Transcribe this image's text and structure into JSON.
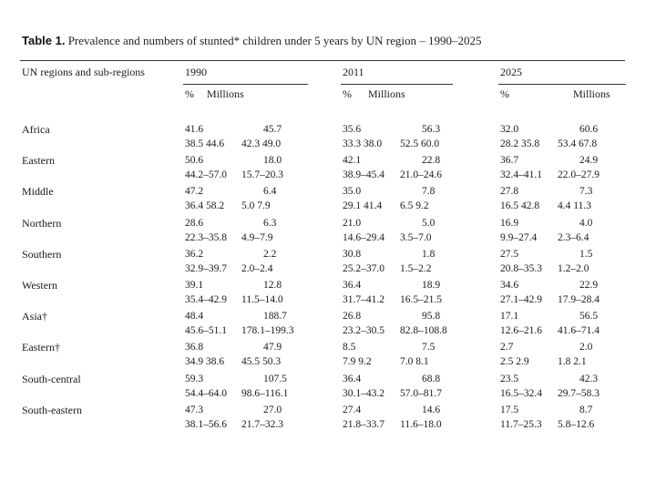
{
  "title": {
    "label": "Table 1.",
    "text": "Prevalence and numbers of stunted* children under 5 years by UN region – 1990–2025"
  },
  "header": {
    "region_col": "UN regions and sub-regions",
    "years": [
      "1990",
      "2011",
      "2025"
    ],
    "pct": "%",
    "millions": "Millions"
  },
  "rows": [
    {
      "name": "Africa",
      "v": [
        [
          "41.6",
          "45.7"
        ],
        [
          "35.6",
          "56.3"
        ],
        [
          "32.0",
          "60.6"
        ]
      ],
      "ci": [
        [
          "38.5 44.6",
          "42.3 49.0"
        ],
        [
          "33.3 38.0",
          "52.5 60.0"
        ],
        [
          "28.2 35.8",
          "53.4 67.8"
        ]
      ]
    },
    {
      "name": "Eastern",
      "v": [
        [
          "50.6",
          "18.0"
        ],
        [
          "42.1",
          "22.8"
        ],
        [
          "36.7",
          "24.9"
        ]
      ],
      "ci": [
        [
          "44.2–57.0",
          "15.7–20.3"
        ],
        [
          "38.9–45.4",
          "21.0–24.6"
        ],
        [
          "32.4–41.1",
          "22.0–27.9"
        ]
      ]
    },
    {
      "name": "Middle",
      "v": [
        [
          "47.2",
          "6.4"
        ],
        [
          "35.0",
          "7.8"
        ],
        [
          "27.8",
          "7.3"
        ]
      ],
      "ci": [
        [
          "36.4 58.2",
          "5.0 7.9"
        ],
        [
          "29.1 41.4",
          "6.5 9.2"
        ],
        [
          "16.5 42.8",
          "4.4 11.3"
        ]
      ]
    },
    {
      "name": "Northern",
      "v": [
        [
          "28.6",
          "6.3"
        ],
        [
          "21.0",
          "5.0"
        ],
        [
          "16.9",
          "4.0"
        ]
      ],
      "ci": [
        [
          "22.3–35.8",
          "4.9–7.9"
        ],
        [
          "14.6–29.4",
          "3.5–7.0"
        ],
        [
          "9.9–27.4",
          "2.3–6.4"
        ]
      ]
    },
    {
      "name": "Southern",
      "v": [
        [
          "36.2",
          "2.2"
        ],
        [
          "30.8",
          "1.8"
        ],
        [
          "27.5",
          "1.5"
        ]
      ],
      "ci": [
        [
          "32.9–39.7",
          "2.0–2.4"
        ],
        [
          "25.2–37.0",
          "1.5–2.2"
        ],
        [
          "20.8–35.3",
          "1.2–2.0"
        ]
      ]
    },
    {
      "name": "Western",
      "v": [
        [
          "39.1",
          "12.8"
        ],
        [
          "36.4",
          "18.9"
        ],
        [
          "34.6",
          "22.9"
        ]
      ],
      "ci": [
        [
          "35.4–42.9",
          "11.5–14.0"
        ],
        [
          "31.7–41.2",
          "16.5–21.5"
        ],
        [
          "27.1–42.9",
          "17.9–28.4"
        ]
      ]
    },
    {
      "name": "Asia†",
      "v": [
        [
          "48.4",
          "188.7"
        ],
        [
          "26.8",
          "95.8"
        ],
        [
          "17.1",
          "56.5"
        ]
      ],
      "ci": [
        [
          "45.6–51.1",
          "178.1–199.3"
        ],
        [
          "23.2–30.5",
          "82.8–108.8"
        ],
        [
          "12.6–21.6",
          "41.6–71.4"
        ]
      ]
    },
    {
      "name": "Eastern†",
      "v": [
        [
          "36.8",
          "47.9"
        ],
        [
          "8.5",
          "7.5"
        ],
        [
          "2.7",
          "2.0"
        ]
      ],
      "ci": [
        [
          "34.9 38.6",
          "45.5 50.3"
        ],
        [
          "7.9 9.2",
          "7.0 8.1"
        ],
        [
          "2.5 2.9",
          "1.8 2.1"
        ]
      ]
    },
    {
      "name": "South-central",
      "v": [
        [
          "59.3",
          "107.5"
        ],
        [
          "36.4",
          "68.8"
        ],
        [
          "23.5",
          "42.3"
        ]
      ],
      "ci": [
        [
          "54.4–64.0",
          "98.6–116.1"
        ],
        [
          "30.1–43.2",
          "57.0–81.7"
        ],
        [
          "16.5–32.4",
          "29.7–58.3"
        ]
      ]
    },
    {
      "name": "South-eastern",
      "v": [
        [
          "47.3",
          "27.0"
        ],
        [
          "27.4",
          "14.6"
        ],
        [
          "17.5",
          "8.7"
        ]
      ],
      "ci": [
        [
          "38.1–56.6",
          "21.7–32.3"
        ],
        [
          "21.8–33.7",
          "11.6–18.0"
        ],
        [
          "11.7–25.3",
          "5.8–12.6"
        ]
      ]
    }
  ]
}
